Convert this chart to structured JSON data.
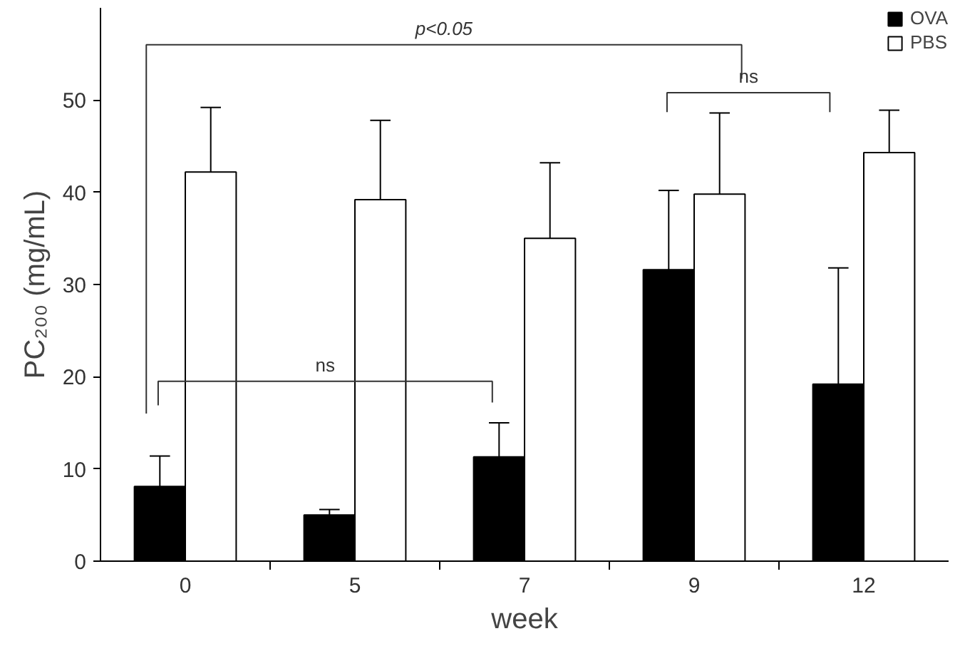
{
  "chart_data": {
    "type": "bar",
    "xlabel": "week",
    "ylabel": "PC₂₀₀ (mg/mL)",
    "categories": [
      "0",
      "5",
      "7",
      "9",
      "12"
    ],
    "series": [
      {
        "name": "OVA",
        "color": "#000000",
        "values": [
          8.1,
          5.0,
          11.3,
          31.6,
          19.2
        ],
        "errors": [
          [
            8.1,
            11.4
          ],
          [
            5.0,
            5.6
          ],
          [
            11.3,
            15.0
          ],
          [
            31.6,
            40.2
          ],
          [
            19.2,
            31.8
          ]
        ]
      },
      {
        "name": "PBS",
        "color": "#ffffff",
        "values": [
          42.2,
          39.2,
          35.0,
          39.8,
          44.3
        ],
        "errors": [
          [
            42.2,
            49.2
          ],
          [
            39.2,
            47.8
          ],
          [
            35.0,
            43.2
          ],
          [
            39.8,
            48.6
          ],
          [
            44.3,
            48.9
          ]
        ]
      }
    ],
    "ylim": [
      0,
      60
    ],
    "yticks": [
      0,
      10,
      20,
      30,
      40,
      50
    ],
    "grid": false,
    "legend": "top right",
    "annotations": [
      "p<0.05",
      "ns",
      "ns"
    ]
  }
}
